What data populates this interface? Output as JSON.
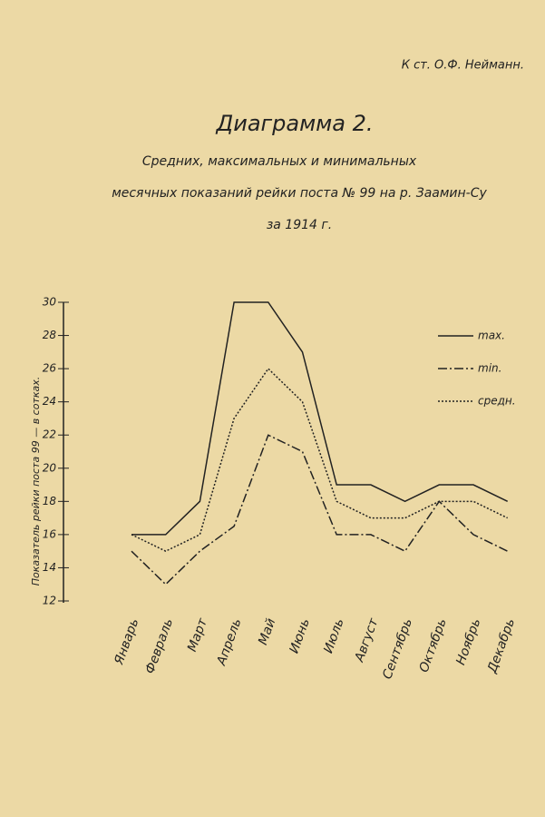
{
  "chart_data": {
    "type": "line",
    "author": "К ст. О.Ф. Нейманн.",
    "title": "Диаграмма 2.",
    "subtitle": [
      "Средних, максимальных и минимальных",
      "месячных показаний рейки поста № 99 на р. Заамин-Су",
      "за 1914 г."
    ],
    "y_label": "Показатель рейки поста 99 — в сотках.",
    "categories": [
      "Январь",
      "Февраль",
      "Март",
      "Апрель",
      "Май",
      "Июнь",
      "Июль",
      "Август",
      "Сентябрь",
      "Октябрь",
      "Ноябрь",
      "Декабрь"
    ],
    "series": [
      {
        "name": "max.",
        "color": "#222",
        "dash": "none",
        "values": [
          16,
          16,
          18,
          30,
          30,
          27,
          19,
          19,
          18,
          19,
          19,
          18
        ]
      },
      {
        "name": "min.",
        "color": "#222",
        "dash": "10 3 2 3",
        "values": [
          15,
          13,
          15,
          16.5,
          22,
          21,
          16,
          16,
          15,
          18,
          16,
          15
        ]
      },
      {
        "name": "средн.",
        "color": "#222",
        "dash": "2 2",
        "values": [
          16,
          15,
          16,
          23,
          26,
          24,
          18,
          17,
          17,
          18,
          18,
          17
        ]
      }
    ],
    "ylim": [
      12,
      30
    ],
    "yticks": [
      12,
      14,
      16,
      18,
      20,
      22,
      24,
      26,
      28,
      30
    ]
  }
}
